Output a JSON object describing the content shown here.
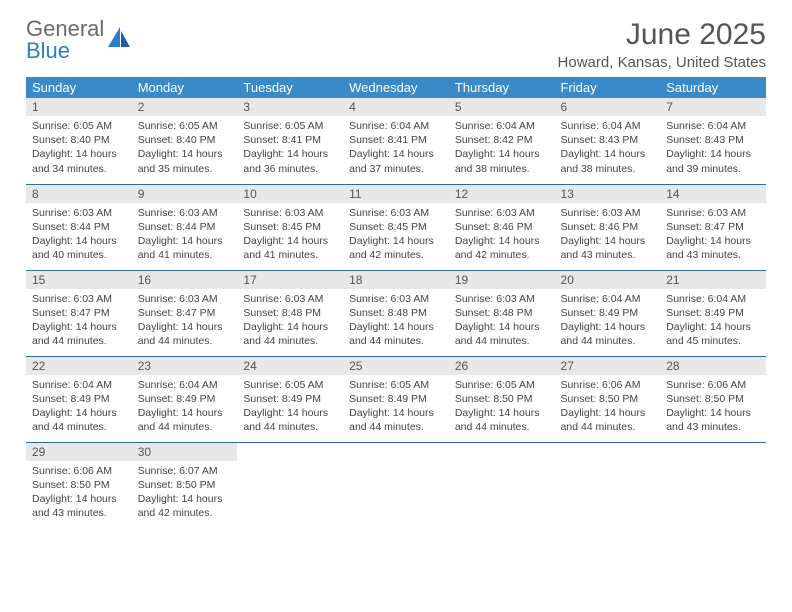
{
  "logo": {
    "text1": "General",
    "text2": "Blue"
  },
  "title": "June 2025",
  "location": "Howard, Kansas, United States",
  "colors": {
    "header_bg": "#3a89c9",
    "header_text": "#ffffff",
    "daynum_bg": "#e8e8e8",
    "row_border": "#2a6da8",
    "body_text": "#444444",
    "title_text": "#555555"
  },
  "weekdays": [
    "Sunday",
    "Monday",
    "Tuesday",
    "Wednesday",
    "Thursday",
    "Friday",
    "Saturday"
  ],
  "days": [
    {
      "n": "1",
      "sr": "6:05 AM",
      "ss": "8:40 PM",
      "dl": "14 hours and 34 minutes."
    },
    {
      "n": "2",
      "sr": "6:05 AM",
      "ss": "8:40 PM",
      "dl": "14 hours and 35 minutes."
    },
    {
      "n": "3",
      "sr": "6:05 AM",
      "ss": "8:41 PM",
      "dl": "14 hours and 36 minutes."
    },
    {
      "n": "4",
      "sr": "6:04 AM",
      "ss": "8:41 PM",
      "dl": "14 hours and 37 minutes."
    },
    {
      "n": "5",
      "sr": "6:04 AM",
      "ss": "8:42 PM",
      "dl": "14 hours and 38 minutes."
    },
    {
      "n": "6",
      "sr": "6:04 AM",
      "ss": "8:43 PM",
      "dl": "14 hours and 38 minutes."
    },
    {
      "n": "7",
      "sr": "6:04 AM",
      "ss": "8:43 PM",
      "dl": "14 hours and 39 minutes."
    },
    {
      "n": "8",
      "sr": "6:03 AM",
      "ss": "8:44 PM",
      "dl": "14 hours and 40 minutes."
    },
    {
      "n": "9",
      "sr": "6:03 AM",
      "ss": "8:44 PM",
      "dl": "14 hours and 41 minutes."
    },
    {
      "n": "10",
      "sr": "6:03 AM",
      "ss": "8:45 PM",
      "dl": "14 hours and 41 minutes."
    },
    {
      "n": "11",
      "sr": "6:03 AM",
      "ss": "8:45 PM",
      "dl": "14 hours and 42 minutes."
    },
    {
      "n": "12",
      "sr": "6:03 AM",
      "ss": "8:46 PM",
      "dl": "14 hours and 42 minutes."
    },
    {
      "n": "13",
      "sr": "6:03 AM",
      "ss": "8:46 PM",
      "dl": "14 hours and 43 minutes."
    },
    {
      "n": "14",
      "sr": "6:03 AM",
      "ss": "8:47 PM",
      "dl": "14 hours and 43 minutes."
    },
    {
      "n": "15",
      "sr": "6:03 AM",
      "ss": "8:47 PM",
      "dl": "14 hours and 44 minutes."
    },
    {
      "n": "16",
      "sr": "6:03 AM",
      "ss": "8:47 PM",
      "dl": "14 hours and 44 minutes."
    },
    {
      "n": "17",
      "sr": "6:03 AM",
      "ss": "8:48 PM",
      "dl": "14 hours and 44 minutes."
    },
    {
      "n": "18",
      "sr": "6:03 AM",
      "ss": "8:48 PM",
      "dl": "14 hours and 44 minutes."
    },
    {
      "n": "19",
      "sr": "6:03 AM",
      "ss": "8:48 PM",
      "dl": "14 hours and 44 minutes."
    },
    {
      "n": "20",
      "sr": "6:04 AM",
      "ss": "8:49 PM",
      "dl": "14 hours and 44 minutes."
    },
    {
      "n": "21",
      "sr": "6:04 AM",
      "ss": "8:49 PM",
      "dl": "14 hours and 45 minutes."
    },
    {
      "n": "22",
      "sr": "6:04 AM",
      "ss": "8:49 PM",
      "dl": "14 hours and 44 minutes."
    },
    {
      "n": "23",
      "sr": "6:04 AM",
      "ss": "8:49 PM",
      "dl": "14 hours and 44 minutes."
    },
    {
      "n": "24",
      "sr": "6:05 AM",
      "ss": "8:49 PM",
      "dl": "14 hours and 44 minutes."
    },
    {
      "n": "25",
      "sr": "6:05 AM",
      "ss": "8:49 PM",
      "dl": "14 hours and 44 minutes."
    },
    {
      "n": "26",
      "sr": "6:05 AM",
      "ss": "8:50 PM",
      "dl": "14 hours and 44 minutes."
    },
    {
      "n": "27",
      "sr": "6:06 AM",
      "ss": "8:50 PM",
      "dl": "14 hours and 44 minutes."
    },
    {
      "n": "28",
      "sr": "6:06 AM",
      "ss": "8:50 PM",
      "dl": "14 hours and 43 minutes."
    },
    {
      "n": "29",
      "sr": "6:06 AM",
      "ss": "8:50 PM",
      "dl": "14 hours and 43 minutes."
    },
    {
      "n": "30",
      "sr": "6:07 AM",
      "ss": "8:50 PM",
      "dl": "14 hours and 42 minutes."
    }
  ],
  "labels": {
    "sunrise": "Sunrise: ",
    "sunset": "Sunset: ",
    "daylight": "Daylight: "
  }
}
